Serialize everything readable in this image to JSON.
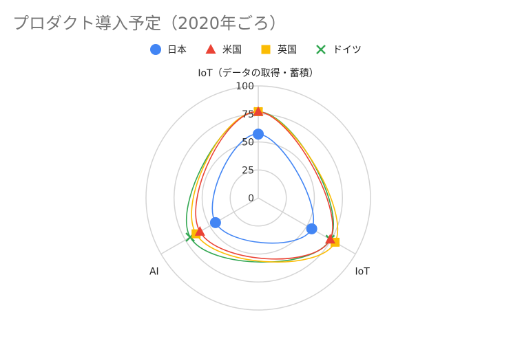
{
  "chart_data": {
    "type": "radar",
    "title": "プロダクト導入予定（2020年ごろ）",
    "axes": [
      "IoT（データの取得・蓄積）",
      "IoT",
      "AI"
    ],
    "radial_ticks": [
      "0",
      "25",
      "50",
      "75",
      "100"
    ],
    "rlim": [
      0,
      100
    ],
    "legend_position": "top",
    "series": [
      {
        "name": "日本",
        "values": [
          57,
          55,
          44
        ],
        "color": "#4285f4",
        "marker": "circle"
      },
      {
        "name": "米国",
        "values": [
          77,
          74,
          60
        ],
        "color": "#ea4335",
        "marker": "triangle"
      },
      {
        "name": "英国",
        "values": [
          77,
          79,
          64
        ],
        "color": "#fbbc04",
        "marker": "square"
      },
      {
        "name": "ドイツ",
        "values": [
          77,
          74,
          70
        ],
        "color": "#34a853",
        "marker": "x"
      }
    ]
  }
}
